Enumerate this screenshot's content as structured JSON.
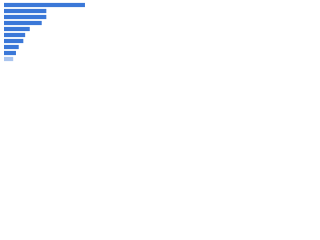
{
  "chart_data": {
    "type": "bar",
    "orientation": "horizontal",
    "categories": [
      null,
      null,
      null,
      null,
      null,
      null,
      null,
      null,
      null,
      null
    ],
    "values": [
      88,
      46,
      46,
      41,
      28,
      23,
      21,
      16,
      13,
      10
    ],
    "colors": [
      "#3b78d8",
      "#3b78d8",
      "#3b78d8",
      "#3b78d8",
      "#3b78d8",
      "#3b78d8",
      "#3b78d8",
      "#3b78d8",
      "#3b78d8",
      "#a9c4ee"
    ],
    "xlim": [
      0,
      100
    ]
  }
}
